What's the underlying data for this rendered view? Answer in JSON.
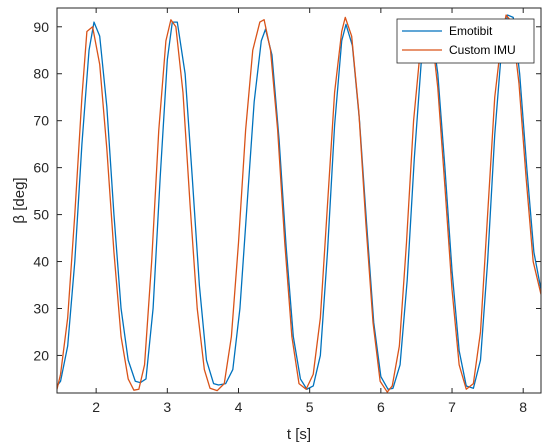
{
  "colors": {
    "emotibit": "#0072BD",
    "custom_imu": "#D95319",
    "axis": "#262626",
    "background": "#ffffff"
  },
  "chart_data": {
    "type": "line",
    "title": "",
    "xlabel": "t [s]",
    "ylabel": "β [deg]",
    "xlim": [
      1.45,
      8.25
    ],
    "ylim": [
      12,
      94
    ],
    "xticks": [
      2,
      3,
      4,
      5,
      6,
      7,
      8
    ],
    "yticks": [
      20,
      30,
      40,
      50,
      60,
      70,
      80,
      90
    ],
    "grid": false,
    "legend_position": "top-right",
    "series": [
      {
        "name": "Emotibit",
        "color": "#0072BD",
        "x": [
          1.45,
          1.5,
          1.6,
          1.7,
          1.8,
          1.9,
          1.97,
          2.05,
          2.15,
          2.25,
          2.35,
          2.45,
          2.55,
          2.62,
          2.7,
          2.8,
          2.9,
          3.0,
          3.07,
          3.14,
          3.25,
          3.35,
          3.45,
          3.55,
          3.65,
          3.72,
          3.82,
          3.92,
          4.02,
          4.12,
          4.22,
          4.32,
          4.38,
          4.47,
          4.57,
          4.67,
          4.77,
          4.87,
          4.96,
          5.05,
          5.15,
          5.25,
          5.35,
          5.45,
          5.51,
          5.6,
          5.7,
          5.8,
          5.9,
          6.0,
          6.1,
          6.17,
          6.27,
          6.37,
          6.47,
          6.57,
          6.65,
          6.72,
          6.8,
          6.9,
          7.0,
          7.1,
          7.2,
          7.3,
          7.4,
          7.5,
          7.6,
          7.7,
          7.78,
          7.86,
          7.95,
          8.05,
          8.15,
          8.25
        ],
        "y": [
          13.5,
          14.5,
          22,
          40,
          65,
          85,
          91,
          88,
          73,
          50,
          30,
          19,
          14.5,
          14.2,
          15,
          30,
          58,
          83,
          91,
          91,
          80,
          58,
          35,
          19,
          14,
          13.7,
          14,
          17,
          30,
          52,
          74,
          87,
          89.5,
          84,
          66,
          43,
          24,
          15,
          12.8,
          13.5,
          20,
          42,
          69,
          87,
          90.5,
          86,
          70,
          48,
          27,
          15.5,
          12.8,
          13,
          18,
          36,
          62,
          83,
          90,
          89,
          80,
          60,
          38,
          21,
          13.5,
          13,
          19,
          40,
          67,
          86,
          92.5,
          92,
          80,
          60,
          42,
          34
        ]
      },
      {
        "name": "Custom IMU",
        "color": "#D95319",
        "x": [
          1.45,
          1.5,
          1.6,
          1.7,
          1.8,
          1.87,
          1.95,
          2.05,
          2.15,
          2.25,
          2.35,
          2.45,
          2.53,
          2.6,
          2.68,
          2.78,
          2.88,
          2.98,
          3.05,
          3.12,
          3.22,
          3.32,
          3.42,
          3.52,
          3.6,
          3.7,
          3.8,
          3.9,
          4.0,
          4.1,
          4.2,
          4.3,
          4.36,
          4.45,
          4.55,
          4.65,
          4.75,
          4.85,
          4.95,
          5.05,
          5.15,
          5.25,
          5.35,
          5.45,
          5.5,
          5.59,
          5.69,
          5.79,
          5.89,
          5.99,
          6.09,
          6.16,
          6.26,
          6.36,
          6.46,
          6.56,
          6.64,
          6.72,
          6.8,
          6.9,
          7.0,
          7.1,
          7.2,
          7.3,
          7.4,
          7.5,
          7.6,
          7.7,
          7.76,
          7.84,
          7.94,
          8.04,
          8.14,
          8.25
        ],
        "y": [
          12.8,
          16,
          28,
          50,
          75,
          89,
          90,
          82,
          64,
          42,
          24,
          15,
          12.6,
          12.8,
          18,
          40,
          68,
          87,
          91.5,
          90,
          76,
          52,
          30,
          17,
          13,
          12.5,
          14,
          24,
          44,
          68,
          85,
          91,
          91.5,
          85,
          68,
          44,
          24,
          14,
          12.8,
          16,
          28,
          52,
          76,
          89,
          92,
          88,
          72,
          48,
          27,
          14.5,
          12.2,
          13.5,
          22,
          44,
          70,
          86,
          90,
          88,
          77,
          56,
          34,
          18,
          12.8,
          14,
          25,
          50,
          75,
          88,
          92.5,
          91,
          78,
          58,
          40,
          33
        ]
      }
    ]
  }
}
